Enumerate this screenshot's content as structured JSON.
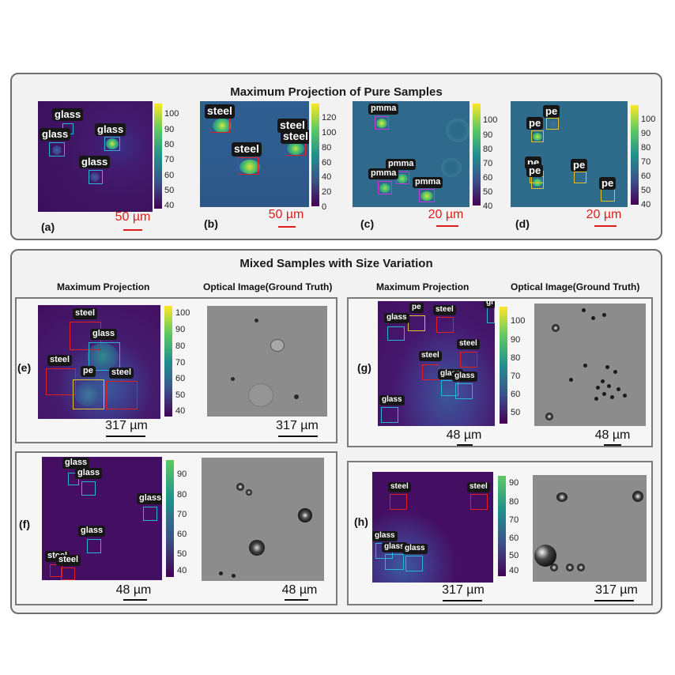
{
  "top": {
    "title": "Maximum Projection of Pure Samples",
    "panels": {
      "a": {
        "letter": "(a)",
        "scale": "50 µm",
        "ticks": [
          "100",
          "90",
          "80",
          "70",
          "60",
          "50",
          "40"
        ],
        "labels": [
          "glass",
          "glass",
          "glass",
          "glass"
        ]
      },
      "b": {
        "letter": "(b)",
        "scale": "50 µm",
        "ticks": [
          "120",
          "100",
          "80",
          "60",
          "40",
          "20",
          "0"
        ],
        "labels": [
          "steel",
          "steel",
          "steel",
          "steel"
        ]
      },
      "c": {
        "letter": "(c)",
        "scale": "20 µm",
        "ticks": [
          "100",
          "90",
          "80",
          "70",
          "60",
          "50",
          "40"
        ],
        "labels": [
          "pmma",
          "pmma",
          "pmma",
          "pmma"
        ]
      },
      "d": {
        "letter": "(d)",
        "scale": "20 µm",
        "ticks": [
          "100",
          "90",
          "80",
          "70",
          "60",
          "50",
          "40"
        ],
        "labels": [
          "pe",
          "pe",
          "pe",
          "pe",
          "pe",
          "pe"
        ]
      }
    }
  },
  "bottom": {
    "title": "Mixed Samples with Size Variation",
    "headers": {
      "left_mp": "Maximum Projection",
      "left_opt": "Optical Image(Ground Truth)",
      "right_mp": "Maximum Projection",
      "right_opt": "Optical Image(Ground Truth)"
    },
    "panels": {
      "e": {
        "letter": "(e)",
        "scale_mp": "317 µm",
        "scale_opt": "317 µm",
        "ticks": [
          "100",
          "90",
          "80",
          "70",
          "60",
          "50",
          "40"
        ],
        "labels": [
          "steel",
          "glass",
          "steel",
          "pe",
          "steel"
        ]
      },
      "f": {
        "letter": "(f)",
        "scale_mp": "48 µm",
        "scale_opt": "48 µm",
        "ticks": [
          "90",
          "80",
          "70",
          "60",
          "50",
          "40"
        ],
        "labels": [
          "glass",
          "glass",
          "glass",
          "glass",
          "steel",
          "steel"
        ]
      },
      "g": {
        "letter": "(g)",
        "scale_mp": "48 µm",
        "scale_opt": "48 µm",
        "ticks": [
          "100",
          "90",
          "80",
          "70",
          "60",
          "50",
          "40"
        ],
        "labels": [
          "glass",
          "pe",
          "steel",
          "gl",
          "steel",
          "steel",
          "glass",
          "glass",
          "glass"
        ]
      },
      "h": {
        "letter": "(h)",
        "scale_mp": "317 µm",
        "scale_opt": "317 µm",
        "ticks": [
          "90",
          "80",
          "70",
          "60",
          "50",
          "40"
        ],
        "labels": [
          "steel",
          "steel",
          "glass",
          "glass",
          "glass"
        ]
      }
    }
  },
  "colors": {
    "glass": "#29b6d6",
    "steel": "#e02020",
    "pmma": "#c23ad8",
    "pe": "#e3c12a",
    "scale_red": "#e01b1b"
  }
}
